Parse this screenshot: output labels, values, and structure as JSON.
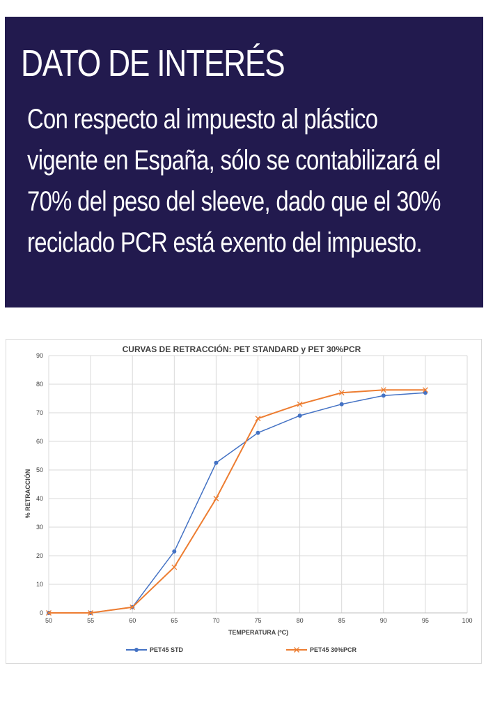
{
  "info": {
    "title": "DATO DE INTERÉS",
    "lines": [
      "Con respecto al impuesto al plástico",
      "vigente en España, sólo se contabilizará el",
      "70% del peso del sleeve, dado que el 30%",
      "reciclado PCR está exento del impuesto."
    ]
  },
  "colors": {
    "box_background": "#221a4e",
    "series_std": "#4472c4",
    "series_pcr": "#ed7d31",
    "grid": "#d9d9d9"
  },
  "chart_data": {
    "type": "line",
    "title": "CURVAS DE RETRACCIÓN: PET STANDARD y PET 30%PCR",
    "xlabel": "TEMPERATURA (ºC)",
    "ylabel": "% RETRACCIÓN",
    "xlim": [
      50,
      100
    ],
    "ylim": [
      0,
      90
    ],
    "x_ticks": [
      50,
      55,
      60,
      65,
      70,
      75,
      80,
      85,
      90,
      95,
      100
    ],
    "y_ticks": [
      0,
      10,
      20,
      30,
      40,
      50,
      60,
      70,
      80,
      90
    ],
    "grid": true,
    "legend_position": "bottom",
    "x": [
      50,
      55,
      60,
      65,
      70,
      75,
      80,
      85,
      90,
      95
    ],
    "series": [
      {
        "name": "PET45 STD",
        "marker": "circle",
        "color": "#4472c4",
        "values": [
          0,
          0,
          2,
          21.5,
          52.5,
          63,
          69,
          73,
          76,
          77
        ]
      },
      {
        "name": "PET45 30%PCR",
        "marker": "x",
        "color": "#ed7d31",
        "values": [
          0,
          0,
          2,
          16,
          40,
          68,
          73,
          77,
          78,
          78
        ]
      }
    ]
  }
}
